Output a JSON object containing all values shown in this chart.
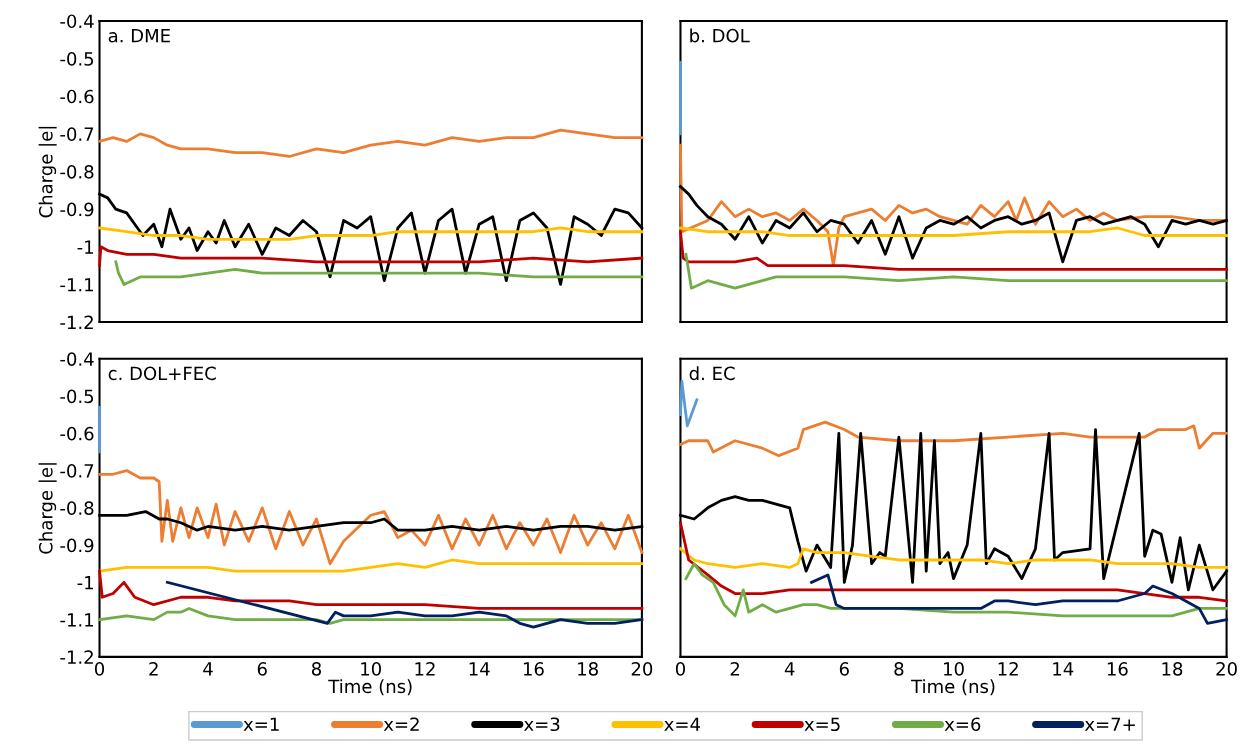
{
  "chart_data": [
    {
      "type": "line",
      "title": "a. DME",
      "ylabel": "Charge |e|",
      "xlim": [
        0,
        20
      ],
      "xticks": [
        0,
        2,
        4,
        6,
        8,
        10,
        12,
        14,
        16,
        18,
        20
      ],
      "ylim": [
        -1.2,
        -0.4
      ],
      "yticks": [
        -0.4,
        -0.5,
        -0.6,
        -0.7,
        -0.8,
        -0.9,
        -1,
        -1.1,
        -1.2
      ],
      "tick_labels": "y",
      "grid": false,
      "series": [
        {
          "color": "#ed7d31",
          "x": [
            0,
            0.5,
            1,
            1.5,
            2,
            2.5,
            3,
            4,
            5,
            6,
            7,
            8,
            9,
            10,
            11,
            12,
            13,
            14,
            15,
            16,
            17,
            18,
            19,
            20
          ],
          "values": [
            -0.72,
            -0.71,
            -0.72,
            -0.7,
            -0.71,
            -0.73,
            -0.74,
            -0.74,
            -0.75,
            -0.75,
            -0.76,
            -0.74,
            -0.75,
            -0.73,
            -0.72,
            -0.73,
            -0.71,
            -0.72,
            -0.71,
            -0.71,
            -0.69,
            -0.7,
            -0.71,
            -0.71
          ]
        },
        {
          "color": "#000000",
          "x": [
            0,
            0.3,
            0.6,
            1,
            1.3,
            1.6,
            2,
            2.3,
            2.6,
            3,
            3.3,
            3.6,
            4,
            4.3,
            4.6,
            5,
            5.5,
            6,
            6.5,
            7,
            7.5,
            8,
            8.5,
            9,
            9.5,
            10,
            10.5,
            11,
            11.5,
            12,
            12.5,
            13,
            13.5,
            14,
            14.5,
            15,
            15.5,
            16,
            16.5,
            17,
            17.5,
            18,
            18.5,
            19,
            19.5,
            20
          ],
          "values": [
            -0.86,
            -0.87,
            -0.9,
            -0.91,
            -0.94,
            -0.97,
            -0.94,
            -1.0,
            -0.9,
            -0.98,
            -0.95,
            -1.01,
            -0.96,
            -0.99,
            -0.93,
            -1.0,
            -0.94,
            -1.02,
            -0.95,
            -0.97,
            -0.93,
            -0.96,
            -1.08,
            -0.93,
            -0.95,
            -0.92,
            -1.09,
            -0.95,
            -0.91,
            -1.07,
            -0.93,
            -0.9,
            -1.07,
            -0.94,
            -0.92,
            -1.09,
            -0.93,
            -0.91,
            -0.95,
            -1.1,
            -0.92,
            -0.94,
            -0.97,
            -0.9,
            -0.91,
            -0.95
          ]
        },
        {
          "color": "#ffc000",
          "x": [
            0,
            1,
            2,
            3,
            4,
            5,
            6,
            7,
            8,
            9,
            10,
            11,
            12,
            13,
            14,
            15,
            16,
            17,
            18,
            19,
            20
          ],
          "values": [
            -0.95,
            -0.96,
            -0.97,
            -0.97,
            -0.98,
            -0.98,
            -0.98,
            -0.98,
            -0.97,
            -0.97,
            -0.97,
            -0.96,
            -0.96,
            -0.96,
            -0.96,
            -0.96,
            -0.96,
            -0.95,
            -0.96,
            -0.96,
            -0.96
          ]
        },
        {
          "color": "#c00000",
          "x": [
            0,
            0.05,
            0.3,
            1,
            2,
            3,
            4,
            6,
            8,
            10,
            12,
            14,
            16,
            18,
            20
          ],
          "values": [
            -1.05,
            -1.0,
            -1.01,
            -1.02,
            -1.02,
            -1.03,
            -1.03,
            -1.03,
            -1.04,
            -1.04,
            -1.04,
            -1.04,
            -1.03,
            -1.04,
            -1.03
          ]
        },
        {
          "color": "#70ad47",
          "x": [
            0.6,
            0.7,
            0.9,
            1.5,
            2,
            3,
            4,
            5,
            6,
            8,
            10,
            12,
            14,
            16,
            18,
            20
          ],
          "values": [
            -1.04,
            -1.07,
            -1.1,
            -1.08,
            -1.08,
            -1.08,
            -1.07,
            -1.06,
            -1.07,
            -1.07,
            -1.07,
            -1.07,
            -1.07,
            -1.08,
            -1.08,
            -1.08
          ]
        }
      ]
    },
    {
      "type": "line",
      "title": "b. DOL",
      "xlim": [
        0,
        20
      ],
      "xticks": [
        0,
        2,
        4,
        6,
        8,
        10,
        12,
        14,
        16,
        18,
        20
      ],
      "ylim": [
        -1.2,
        -0.4
      ],
      "yticks": [
        -0.4,
        -0.5,
        -0.6,
        -0.7,
        -0.8,
        -0.9,
        -1,
        -1.1,
        -1.2
      ],
      "tick_labels": false,
      "grid": false,
      "series": [
        {
          "color": "#5b9bd5",
          "x": [
            0,
            0
          ],
          "values": [
            -0.51,
            -0.7
          ]
        },
        {
          "color": "#ed7d31",
          "x": [
            0,
            0.05,
            1,
            1.5,
            2,
            2.5,
            3,
            3.5,
            4,
            4.5,
            5,
            5.4,
            5.6,
            5.8,
            6,
            6.5,
            7,
            7.5,
            8,
            8.5,
            9,
            9.5,
            10,
            10.5,
            11,
            11.5,
            12,
            12.3,
            12.6,
            13,
            13.5,
            14,
            14.5,
            15,
            15.5,
            16,
            17,
            18,
            19,
            20
          ],
          "values": [
            -0.73,
            -0.96,
            -0.93,
            -0.88,
            -0.92,
            -0.9,
            -0.92,
            -0.91,
            -0.93,
            -0.9,
            -0.93,
            -0.96,
            -1.05,
            -0.95,
            -0.92,
            -0.91,
            -0.9,
            -0.93,
            -0.89,
            -0.91,
            -0.9,
            -0.92,
            -0.93,
            -0.94,
            -0.89,
            -0.92,
            -0.88,
            -0.93,
            -0.87,
            -0.94,
            -0.88,
            -0.92,
            -0.9,
            -0.93,
            -0.91,
            -0.93,
            -0.92,
            -0.92,
            -0.93,
            -0.93
          ]
        },
        {
          "color": "#000000",
          "x": [
            0,
            0.3,
            0.6,
            1,
            1.5,
            2,
            2.5,
            3,
            3.5,
            4,
            4.5,
            5,
            5.5,
            6,
            6.5,
            7,
            7.5,
            8,
            8.5,
            9,
            9.5,
            10,
            10.5,
            11,
            11.5,
            12,
            12.5,
            13,
            13.5,
            14,
            14.5,
            15,
            15.5,
            16,
            16.5,
            17,
            17.5,
            18,
            18.5,
            19,
            19.5,
            20
          ],
          "values": [
            -0.84,
            -0.86,
            -0.89,
            -0.92,
            -0.94,
            -0.98,
            -0.92,
            -0.99,
            -0.93,
            -0.95,
            -0.91,
            -0.96,
            -0.93,
            -0.94,
            -0.99,
            -0.93,
            -1.02,
            -0.92,
            -1.03,
            -0.95,
            -0.93,
            -0.94,
            -0.92,
            -0.95,
            -0.93,
            -0.92,
            -0.94,
            -0.93,
            -0.91,
            -1.04,
            -0.93,
            -0.92,
            -0.94,
            -0.93,
            -0.92,
            -0.94,
            -1.0,
            -0.93,
            -0.94,
            -0.93,
            -0.94,
            -0.93
          ]
        },
        {
          "color": "#ffc000",
          "x": [
            0,
            1,
            2,
            3,
            4,
            5,
            6,
            8,
            10,
            12,
            14,
            15,
            16,
            17,
            18,
            19,
            20
          ],
          "values": [
            -0.95,
            -0.96,
            -0.96,
            -0.96,
            -0.97,
            -0.97,
            -0.97,
            -0.97,
            -0.97,
            -0.96,
            -0.96,
            -0.96,
            -0.95,
            -0.97,
            -0.97,
            -0.97,
            -0.97
          ]
        },
        {
          "color": "#c00000",
          "x": [
            0,
            0.1,
            0.3,
            1,
            2,
            2.8,
            3,
            3.2,
            4,
            6,
            8,
            10,
            12,
            14,
            16,
            18,
            20
          ],
          "values": [
            -0.96,
            -1.03,
            -1.04,
            -1.04,
            -1.04,
            -1.03,
            -1.04,
            -1.05,
            -1.05,
            -1.05,
            -1.06,
            -1.06,
            -1.06,
            -1.06,
            -1.06,
            -1.06,
            -1.06
          ]
        },
        {
          "color": "#70ad47",
          "x": [
            0.2,
            0.4,
            1,
            1.5,
            2,
            2.5,
            3,
            3.5,
            4,
            6,
            8,
            10,
            12,
            14,
            16,
            18,
            20
          ],
          "values": [
            -1.02,
            -1.11,
            -1.09,
            -1.1,
            -1.11,
            -1.1,
            -1.09,
            -1.08,
            -1.08,
            -1.08,
            -1.09,
            -1.08,
            -1.09,
            -1.09,
            -1.09,
            -1.09,
            -1.09
          ]
        }
      ]
    },
    {
      "type": "line",
      "title": "c. DOL+FEC",
      "xlabel": "Time (ns)",
      "ylabel": "Charge |e|",
      "xlim": [
        0,
        20
      ],
      "xticks": [
        0,
        2,
        4,
        6,
        8,
        10,
        12,
        14,
        16,
        18,
        20
      ],
      "ylim": [
        -1.2,
        -0.4
      ],
      "yticks": [
        -0.4,
        -0.5,
        -0.6,
        -0.7,
        -0.8,
        -0.9,
        -1,
        -1.1,
        -1.2
      ],
      "grid": false,
      "legend": "bottom",
      "series": [
        {
          "name": "x=1",
          "color": "#5b9bd5",
          "x": [
            0,
            0
          ],
          "values": [
            -0.53,
            -0.65
          ]
        },
        {
          "name": "x=2",
          "color": "#ed7d31",
          "x": [
            0,
            0.5,
            1,
            1.5,
            2,
            2.2,
            2.3,
            2.5,
            2.7,
            3,
            3.3,
            3.6,
            4,
            4.3,
            4.6,
            5,
            5.5,
            6,
            6.5,
            7,
            7.5,
            8,
            8.5,
            9,
            10,
            10.5,
            11,
            11.5,
            12,
            12.5,
            13,
            13.5,
            14,
            14.5,
            15,
            15.5,
            16,
            16.5,
            17,
            17.5,
            18,
            18.5,
            19,
            19.5,
            20
          ],
          "values": [
            -0.71,
            -0.71,
            -0.7,
            -0.72,
            -0.72,
            -0.73,
            -0.89,
            -0.78,
            -0.89,
            -0.8,
            -0.88,
            -0.8,
            -0.88,
            -0.79,
            -0.9,
            -0.81,
            -0.89,
            -0.8,
            -0.91,
            -0.81,
            -0.9,
            -0.83,
            -0.95,
            -0.89,
            -0.82,
            -0.81,
            -0.88,
            -0.86,
            -0.9,
            -0.82,
            -0.91,
            -0.83,
            -0.9,
            -0.82,
            -0.91,
            -0.84,
            -0.9,
            -0.83,
            -0.92,
            -0.82,
            -0.9,
            -0.84,
            -0.91,
            -0.82,
            -0.92
          ]
        },
        {
          "name": "x=3",
          "color": "#000000",
          "x": [
            0,
            1,
            1.7,
            2.2,
            2.5,
            3,
            3.6,
            4,
            5,
            6,
            7,
            8,
            9,
            10,
            10.5,
            11,
            12,
            13,
            14,
            15,
            16,
            17,
            18,
            19,
            20
          ],
          "values": [
            -0.82,
            -0.82,
            -0.81,
            -0.83,
            -0.83,
            -0.84,
            -0.86,
            -0.85,
            -0.86,
            -0.85,
            -0.86,
            -0.85,
            -0.84,
            -0.84,
            -0.83,
            -0.86,
            -0.86,
            -0.85,
            -0.86,
            -0.85,
            -0.86,
            -0.85,
            -0.85,
            -0.86,
            -0.85
          ]
        },
        {
          "name": "x=4",
          "color": "#ffc000",
          "x": [
            0,
            1,
            2,
            3,
            4,
            5,
            6,
            7,
            8,
            9,
            10,
            11,
            12,
            13,
            14,
            16,
            18,
            20
          ],
          "values": [
            -0.97,
            -0.96,
            -0.96,
            -0.96,
            -0.96,
            -0.97,
            -0.97,
            -0.97,
            -0.97,
            -0.97,
            -0.96,
            -0.95,
            -0.96,
            -0.94,
            -0.95,
            -0.95,
            -0.95,
            -0.95
          ]
        },
        {
          "name": "x=5",
          "color": "#c00000",
          "x": [
            0,
            0.1,
            0.5,
            0.9,
            1.3,
            2,
            3,
            4,
            5,
            6,
            7,
            8,
            9,
            10,
            12,
            14,
            16,
            18,
            20
          ],
          "values": [
            -0.97,
            -1.04,
            -1.03,
            -1.0,
            -1.04,
            -1.06,
            -1.04,
            -1.04,
            -1.05,
            -1.05,
            -1.05,
            -1.06,
            -1.06,
            -1.06,
            -1.06,
            -1.07,
            -1.07,
            -1.07,
            -1.07
          ]
        },
        {
          "name": "x=6",
          "color": "#70ad47",
          "x": [
            0,
            1,
            2,
            2.5,
            3,
            3.3,
            4,
            5,
            6,
            7,
            8,
            8.5,
            9,
            10,
            12,
            14,
            16,
            18,
            20
          ],
          "values": [
            -1.1,
            -1.09,
            -1.1,
            -1.08,
            -1.08,
            -1.07,
            -1.09,
            -1.1,
            -1.1,
            -1.1,
            -1.1,
            -1.11,
            -1.1,
            -1.1,
            -1.1,
            -1.1,
            -1.1,
            -1.1,
            -1.1
          ]
        },
        {
          "name": "x=7+",
          "color": "#002060",
          "x": [
            2.5,
            8.4,
            8.7,
            9,
            10,
            11,
            12,
            13,
            14,
            15,
            15.5,
            16,
            17,
            18,
            19,
            20
          ],
          "values": [
            -1.0,
            -1.11,
            -1.08,
            -1.09,
            -1.09,
            -1.08,
            -1.09,
            -1.09,
            -1.08,
            -1.09,
            -1.11,
            -1.12,
            -1.1,
            -1.11,
            -1.11,
            -1.1
          ]
        }
      ]
    },
    {
      "type": "line",
      "title": "d. EC",
      "xlabel": "Time (ns)",
      "xlim": [
        0,
        20
      ],
      "xticks": [
        0,
        2,
        4,
        6,
        8,
        10,
        12,
        14,
        16,
        18,
        20
      ],
      "ylim": [
        -1.2,
        -0.4
      ],
      "yticks": [
        -0.4,
        -0.5,
        -0.6,
        -0.7,
        -0.8,
        -0.9,
        -1,
        -1.1,
        -1.2
      ],
      "tick_labels": "x",
      "grid": false,
      "series": [
        {
          "color": "#5b9bd5",
          "x": [
            0,
            0.05,
            0.25,
            0.6
          ],
          "values": [
            -0.55,
            -0.46,
            -0.58,
            -0.51
          ]
        },
        {
          "color": "#ed7d31",
          "x": [
            0,
            0.3,
            1,
            1.2,
            2,
            3,
            3.6,
            4.3,
            4.5,
            5.3,
            6,
            6.5,
            8,
            10,
            12,
            14,
            15,
            16,
            17,
            17.5,
            18.5,
            18.8,
            19,
            19.5,
            20
          ],
          "values": [
            -0.63,
            -0.62,
            -0.62,
            -0.65,
            -0.62,
            -0.64,
            -0.66,
            -0.64,
            -0.59,
            -0.57,
            -0.59,
            -0.61,
            -0.62,
            -0.62,
            -0.61,
            -0.6,
            -0.61,
            -0.61,
            -0.61,
            -0.59,
            -0.59,
            -0.58,
            -0.64,
            -0.6,
            -0.6
          ]
        },
        {
          "color": "#000000",
          "x": [
            0,
            0.5,
            1,
            1.5,
            2,
            2.5,
            3,
            3.5,
            4,
            4.3,
            4.6,
            5,
            5.5,
            5.8,
            6,
            6.3,
            6.6,
            7,
            7.3,
            7.5,
            8,
            8.5,
            8.8,
            9,
            9.3,
            9.5,
            9.8,
            10,
            10.5,
            11,
            11.2,
            11.5,
            12,
            12.5,
            13,
            13.5,
            13.7,
            14,
            15,
            15.2,
            15.5,
            16.8,
            17,
            17.3,
            17.6,
            18,
            18.3,
            18.6,
            19,
            19.5,
            20
          ],
          "values": [
            -0.82,
            -0.83,
            -0.8,
            -0.78,
            -0.77,
            -0.78,
            -0.78,
            -0.79,
            -0.8,
            -0.89,
            -0.97,
            -0.9,
            -0.96,
            -0.6,
            -1.0,
            -0.9,
            -0.6,
            -0.95,
            -0.92,
            -0.93,
            -0.61,
            -1.0,
            -0.6,
            -0.97,
            -0.62,
            -0.95,
            -0.92,
            -0.99,
            -0.9,
            -0.6,
            -0.95,
            -0.91,
            -0.93,
            -0.99,
            -0.91,
            -0.6,
            -0.94,
            -0.92,
            -0.91,
            -0.59,
            -0.99,
            -0.6,
            -0.93,
            -0.86,
            -0.87,
            -1.0,
            -0.88,
            -1.02,
            -0.9,
            -1.02,
            -0.97
          ]
        },
        {
          "color": "#ffc000",
          "x": [
            0,
            0.5,
            1,
            2,
            3,
            4,
            4.3,
            4.5,
            5,
            6,
            7,
            8,
            9,
            10,
            11,
            12,
            13,
            14,
            15,
            16,
            17,
            18,
            19,
            20
          ],
          "values": [
            -0.91,
            -0.94,
            -0.95,
            -0.96,
            -0.95,
            -0.96,
            -0.95,
            -0.91,
            -0.92,
            -0.92,
            -0.93,
            -0.94,
            -0.94,
            -0.94,
            -0.94,
            -0.95,
            -0.94,
            -0.94,
            -0.94,
            -0.95,
            -0.95,
            -0.95,
            -0.96,
            -0.96
          ]
        },
        {
          "color": "#c00000",
          "x": [
            0,
            0.3,
            1,
            1.5,
            2,
            3,
            4,
            5,
            6,
            8,
            10,
            12,
            14,
            16,
            17,
            18,
            19,
            20
          ],
          "values": [
            -0.84,
            -0.94,
            -0.98,
            -1.01,
            -1.03,
            -1.03,
            -1.02,
            -1.02,
            -1.02,
            -1.02,
            -1.02,
            -1.02,
            -1.02,
            -1.02,
            -1.03,
            -1.04,
            -1.04,
            -1.05
          ]
        },
        {
          "color": "#70ad47",
          "x": [
            0.2,
            0.5,
            0.8,
            1.2,
            1.6,
            2,
            2.3,
            2.5,
            3,
            3.5,
            4,
            4.5,
            5,
            5.5,
            6,
            8,
            10,
            12,
            14,
            16,
            17,
            18,
            19,
            20
          ],
          "values": [
            -0.99,
            -0.95,
            -0.98,
            -1.0,
            -1.06,
            -1.09,
            -1.02,
            -1.08,
            -1.06,
            -1.08,
            -1.07,
            -1.06,
            -1.06,
            -1.07,
            -1.07,
            -1.07,
            -1.08,
            -1.08,
            -1.09,
            -1.09,
            -1.09,
            -1.09,
            -1.07,
            -1.07
          ]
        },
        {
          "color": "#002060",
          "x": [
            4.8,
            5.4,
            5.7,
            6,
            7,
            8,
            9,
            10,
            11,
            11.5,
            12,
            13,
            14,
            15,
            16,
            17,
            17.3,
            18,
            18.5,
            19,
            19.3,
            20
          ],
          "values": [
            -1.0,
            -0.98,
            -1.06,
            -1.07,
            -1.07,
            -1.07,
            -1.07,
            -1.07,
            -1.07,
            -1.05,
            -1.05,
            -1.06,
            -1.05,
            -1.05,
            -1.05,
            -1.03,
            -1.01,
            -1.03,
            -1.05,
            -1.07,
            -1.11,
            -1.1
          ]
        }
      ]
    }
  ]
}
